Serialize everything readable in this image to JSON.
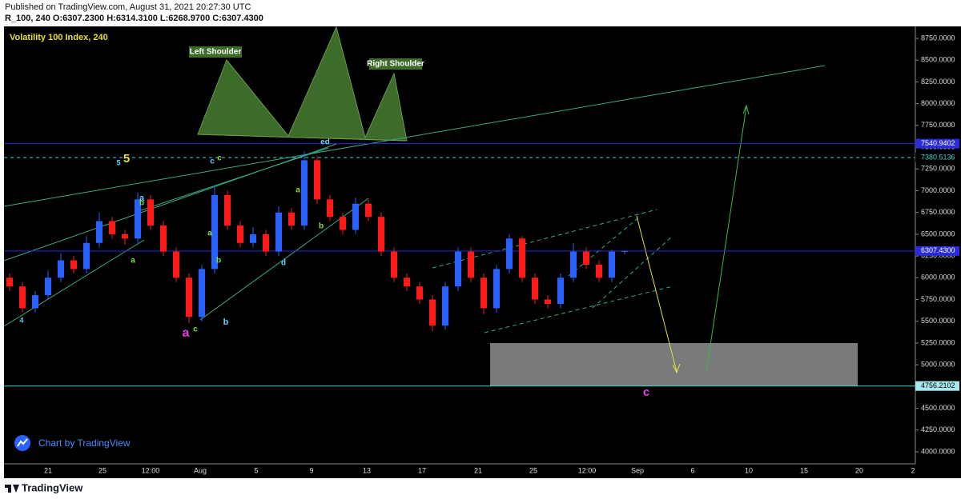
{
  "header": {
    "published": "Published on TradingView.com, August 31, 2021 20:27:30 UTC",
    "symbol_line": "R_100, 240 O:6307.2300 H:6314.3100 L:6268.9700 C:6307.4300"
  },
  "chart_data": {
    "type": "candlestick",
    "title": "Volatility 100 Index, 240",
    "up_color": "#2962ff",
    "down_color": "#ff1a1a",
    "ohlc": [
      [
        6000,
        6050,
        5850,
        5900
      ],
      [
        5900,
        5950,
        5600,
        5650
      ],
      [
        5650,
        5850,
        5600,
        5800
      ],
      [
        5800,
        6080,
        5750,
        6000
      ],
      [
        6000,
        6280,
        5950,
        6200
      ],
      [
        6200,
        6250,
        6050,
        6100
      ],
      [
        6100,
        6480,
        6050,
        6400
      ],
      [
        6400,
        6750,
        6350,
        6650
      ],
      [
        6650,
        6700,
        6450,
        6500
      ],
      [
        6500,
        6550,
        6380,
        6450
      ],
      [
        6450,
        6980,
        6400,
        6900
      ],
      [
        6900,
        6950,
        6550,
        6600
      ],
      [
        6600,
        6650,
        6250,
        6300
      ],
      [
        6300,
        6350,
        5950,
        6000
      ],
      [
        6000,
        6050,
        5480,
        5550
      ],
      [
        5550,
        6150,
        5500,
        6100
      ],
      [
        6100,
        7050,
        6050,
        6950
      ],
      [
        6950,
        7000,
        6550,
        6600
      ],
      [
        6600,
        6650,
        6350,
        6400
      ],
      [
        6400,
        6580,
        6350,
        6500
      ],
      [
        6500,
        6550,
        6250,
        6300
      ],
      [
        6300,
        6820,
        6250,
        6750
      ],
      [
        6750,
        6800,
        6550,
        6600
      ],
      [
        6600,
        7450,
        6550,
        7350
      ],
      [
        7350,
        7400,
        6850,
        6900
      ],
      [
        6900,
        6950,
        6650,
        6700
      ],
      [
        6700,
        6750,
        6500,
        6550
      ],
      [
        6550,
        6920,
        6500,
        6850
      ],
      [
        6850,
        6900,
        6650,
        6700
      ],
      [
        6700,
        6750,
        6250,
        6300
      ],
      [
        6300,
        6350,
        5950,
        6000
      ],
      [
        6000,
        6050,
        5850,
        5900
      ],
      [
        5900,
        5950,
        5700,
        5750
      ],
      [
        5750,
        5800,
        5380,
        5450
      ],
      [
        5450,
        5950,
        5400,
        5900
      ],
      [
        5900,
        6350,
        5850,
        6300
      ],
      [
        6300,
        6350,
        5950,
        6000
      ],
      [
        6000,
        6050,
        5580,
        5650
      ],
      [
        5650,
        6150,
        5600,
        6100
      ],
      [
        6100,
        6500,
        6050,
        6450
      ],
      [
        6450,
        6480,
        5950,
        6000
      ],
      [
        6000,
        6050,
        5700,
        5750
      ],
      [
        5750,
        5800,
        5650,
        5700
      ],
      [
        5700,
        6050,
        5650,
        6000
      ],
      [
        6000,
        6400,
        5950,
        6300
      ],
      [
        6300,
        6350,
        6100,
        6150
      ],
      [
        6150,
        6200,
        5950,
        6000
      ],
      [
        6000,
        6320,
        5950,
        6300
      ],
      [
        6307.23,
        6314.31,
        6268.97,
        6307.43
      ]
    ],
    "ylim": [
      4000,
      8750
    ],
    "yticks": [
      {
        "value": 4000,
        "label": "4000.0000"
      },
      {
        "value": 4250,
        "label": "4250.0000"
      },
      {
        "value": 4500,
        "label": "4500.0000"
      },
      {
        "value": 4750,
        "label": "4750.0000"
      },
      {
        "value": 5000,
        "label": "5000.0000"
      },
      {
        "value": 5250,
        "label": "5250.0000"
      },
      {
        "value": 5500,
        "label": "5500.0000"
      },
      {
        "value": 5750,
        "label": "5750.0000"
      },
      {
        "value": 6000,
        "label": "6000.0000"
      },
      {
        "value": 6250,
        "label": "6250.0000"
      },
      {
        "value": 6500,
        "label": "6500.0000"
      },
      {
        "value": 6750,
        "label": "6750.0000"
      },
      {
        "value": 7000,
        "label": "7000.0000"
      },
      {
        "value": 7250,
        "label": "7250.0000"
      },
      {
        "value": 7500,
        "label": "7500.0000"
      },
      {
        "value": 7750,
        "label": "7750.0000"
      },
      {
        "value": 8000,
        "label": "8000.0000"
      },
      {
        "value": 8250,
        "label": "8250.0000"
      },
      {
        "value": 8500,
        "label": "8500.0000"
      },
      {
        "value": 8750,
        "label": "8750.0000"
      }
    ],
    "x_labels": [
      "21",
      "25",
      "12:00",
      "Aug",
      "5",
      "9",
      "13",
      "17",
      "21",
      "25",
      "12:00",
      "Sep",
      "6",
      "10",
      "15",
      "20",
      "2"
    ],
    "price_lines": [
      {
        "value": 7540.9402,
        "label": "7540.9402"
      },
      {
        "value": 7380.5136,
        "label": "7380.5136"
      },
      {
        "value": 6307.43,
        "label": "6307.4300"
      },
      {
        "value": 4756.2102,
        "label": "4756.2102"
      }
    ],
    "annotations": [
      "Left Shoulder",
      "Right Shoulder",
      "5",
      "5",
      "4",
      "a",
      "b",
      "a",
      "a",
      "c",
      "c",
      "c",
      "a",
      "b",
      "b",
      "d",
      "a",
      "b",
      "ed",
      "c"
    ],
    "watermark": "Chart by TradingView"
  },
  "footer": {
    "brand": "TradingView"
  }
}
